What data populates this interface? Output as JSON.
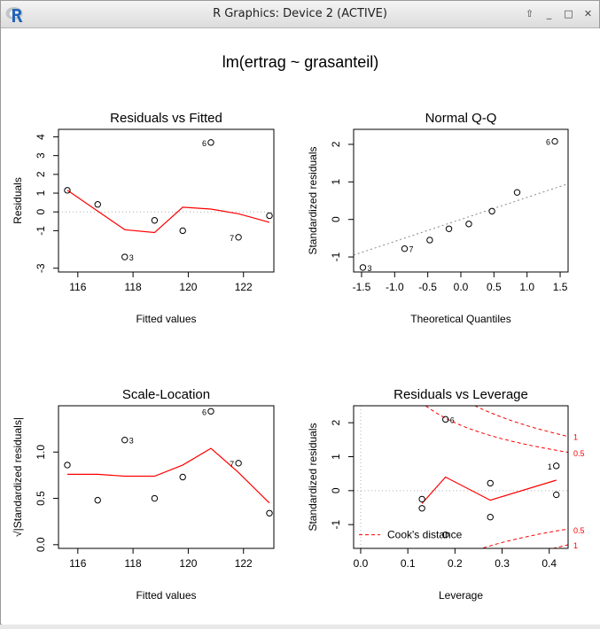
{
  "window": {
    "title": "R Graphics: Device 2 (ACTIVE)",
    "buttons": {
      "up": "⇧",
      "minimize": "_",
      "maximize": "□",
      "close": "✕"
    }
  },
  "figure_title": "lm(ertrag ~ grasanteil)",
  "chart_data": [
    {
      "type": "scatter",
      "title": "Residuals vs Fitted",
      "xlabel": "Fitted values",
      "ylabel": "Residuals",
      "xlim": [
        115.3,
        123.1
      ],
      "ylim": [
        -3.2,
        4.4
      ],
      "xticks": [
        116,
        118,
        120,
        122
      ],
      "yticks": [
        -3,
        -1,
        0,
        1,
        2,
        3,
        4
      ],
      "x": [
        115.62,
        116.72,
        117.7,
        118.78,
        119.8,
        120.82,
        121.82,
        122.94
      ],
      "y": [
        1.15,
        0.4,
        -2.4,
        -0.45,
        -1.0,
        3.7,
        -1.35,
        -0.2
      ],
      "point_labels": [
        {
          "index": 5,
          "label": "6"
        },
        {
          "index": 2,
          "label": "3"
        },
        {
          "index": 6,
          "label": "7"
        }
      ],
      "smoother": {
        "x": [
          115.62,
          116.72,
          117.7,
          118.78,
          119.8,
          120.82,
          121.82,
          122.94
        ],
        "y": [
          1.15,
          0.05,
          -0.95,
          -1.1,
          0.25,
          0.15,
          -0.1,
          -0.55
        ],
        "color": "#ff0000"
      },
      "hline": {
        "y": 0,
        "style": "dotted",
        "color": "#b0b0b0"
      }
    },
    {
      "type": "scatter",
      "title": "Normal Q-Q",
      "xlabel": "Theoretical Quantiles",
      "ylabel": "Standardized residuals",
      "xlim": [
        -1.62,
        1.62
      ],
      "ylim": [
        -1.4,
        2.4
      ],
      "xticks": [
        -1.5,
        -1.0,
        -0.5,
        0.0,
        0.5,
        1.0,
        1.5
      ],
      "yticks": [
        -1,
        0,
        1,
        2
      ],
      "x": [
        -1.48,
        -0.85,
        -0.47,
        -0.18,
        0.12,
        0.47,
        0.85,
        1.42
      ],
      "y": [
        -1.28,
        -0.78,
        -0.55,
        -0.25,
        -0.12,
        0.22,
        0.72,
        2.08
      ],
      "point_labels": [
        {
          "index": 7,
          "label": "6"
        },
        {
          "index": 0,
          "label": "3"
        },
        {
          "index": 1,
          "label": "7"
        }
      ],
      "reference_line": {
        "x": [
          -1.62,
          1.62
        ],
        "y": [
          -0.95,
          0.95
        ],
        "style": "dotted",
        "color": "#888888"
      }
    },
    {
      "type": "scatter",
      "title": "Scale-Location",
      "xlabel": "Fitted values",
      "ylabel": "√|Standardized residuals|",
      "xlim": [
        115.3,
        123.1
      ],
      "ylim": [
        -0.04,
        1.5
      ],
      "xticks": [
        116,
        118,
        120,
        122
      ],
      "yticks": [
        0.0,
        0.5,
        1.0
      ],
      "x": [
        115.62,
        116.72,
        117.7,
        118.78,
        119.8,
        120.82,
        121.82,
        122.94
      ],
      "y": [
        0.86,
        0.48,
        1.13,
        0.5,
        0.73,
        1.44,
        0.88,
        0.34
      ],
      "point_labels": [
        {
          "index": 5,
          "label": "6"
        },
        {
          "index": 2,
          "label": "3"
        },
        {
          "index": 6,
          "label": "7"
        }
      ],
      "smoother": {
        "x": [
          115.62,
          116.72,
          117.7,
          118.78,
          119.8,
          120.82,
          121.82,
          122.94
        ],
        "y": [
          0.76,
          0.76,
          0.74,
          0.74,
          0.86,
          1.04,
          0.78,
          0.45
        ],
        "color": "#ff0000"
      }
    },
    {
      "type": "scatter",
      "title": "Residuals vs Leverage",
      "xlabel": "Leverage",
      "ylabel": "Standardized residuals",
      "xlim": [
        -0.015,
        0.44
      ],
      "ylim": [
        -1.7,
        2.5
      ],
      "xticks": [
        0.0,
        0.1,
        0.2,
        0.3,
        0.4
      ],
      "yticks": [
        -1,
        0,
        1,
        2
      ],
      "x": [
        0.13,
        0.13,
        0.18,
        0.18,
        0.275,
        0.275,
        0.415,
        0.415
      ],
      "y": [
        -0.25,
        -0.52,
        2.1,
        -1.3,
        0.22,
        -0.78,
        0.73,
        -0.12
      ],
      "point_labels": [
        {
          "index": 2,
          "label": "6"
        },
        {
          "index": 6,
          "label": "1"
        }
      ],
      "smoother": {
        "x": [
          0.13,
          0.18,
          0.275,
          0.415
        ],
        "y": [
          -0.38,
          0.4,
          -0.28,
          0.31
        ],
        "color": "#ff0000"
      },
      "hline": {
        "y": 0,
        "style": "dotted",
        "color": "#b0b0b0"
      },
      "vline": {
        "x": 0,
        "style": "dotted",
        "color": "#b0b0b0"
      },
      "cooks_distance": {
        "legend": "Cook's distance",
        "levels": [
          0.5,
          1
        ],
        "curve_labels": [
          {
            "label": "1",
            "y": 1.6
          },
          {
            "label": "0.5",
            "y": 1.12
          },
          {
            "label": "0.5",
            "y": -1.15
          },
          {
            "label": "1",
            "y": -1.6
          }
        ],
        "color": "#ff0000",
        "style": "dashed"
      }
    }
  ]
}
